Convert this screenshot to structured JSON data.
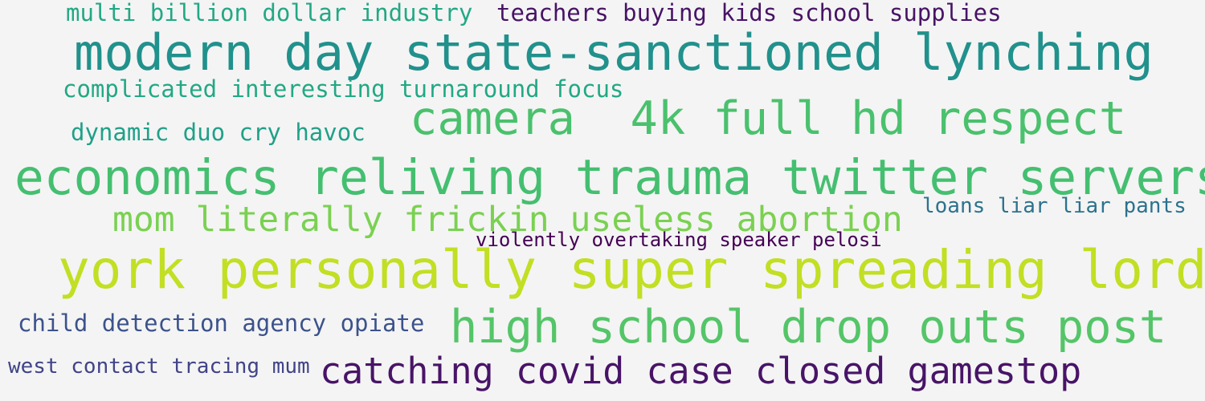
{
  "phrases": [
    {
      "text": "multi billion dollar industry",
      "color": "#22a884"
    },
    {
      "text": "teachers buying kids school supplies",
      "color": "#471365"
    },
    {
      "text": "modern day state-sanctioned lynching",
      "color": "#21918c"
    },
    {
      "text": "complicated interesting turnaround focus",
      "color": "#22a884"
    },
    {
      "text": "camera  4k full hd respect",
      "color": "#4ac16d"
    },
    {
      "text": "dynamic duo cry havoc",
      "color": "#1fa187"
    },
    {
      "text": "economics reliving trauma twitter servers",
      "color": "#44bf70"
    },
    {
      "text": "mom literally frickin useless abortion",
      "color": "#7ad151"
    },
    {
      "text": "loans liar liar pants",
      "color": "#2c728e"
    },
    {
      "text": "violently overtaking speaker pelosi",
      "color": "#440154"
    },
    {
      "text": "york personally super spreading lord",
      "color": "#c2df23"
    },
    {
      "text": "child detection agency opiate",
      "color": "#3b528b"
    },
    {
      "text": "high school drop outs post",
      "color": "#54c568"
    },
    {
      "text": "west contact tracing mum",
      "color": "#414487"
    },
    {
      "text": "catching covid case closed gamestop",
      "color": "#481467"
    }
  ]
}
